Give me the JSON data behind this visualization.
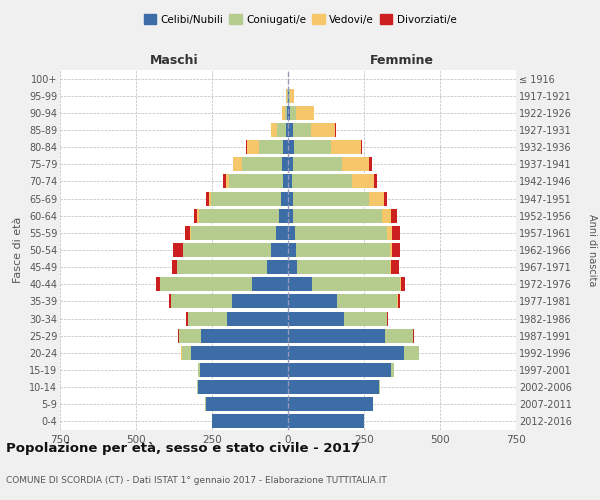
{
  "age_groups": [
    "0-4",
    "5-9",
    "10-14",
    "15-19",
    "20-24",
    "25-29",
    "30-34",
    "35-39",
    "40-44",
    "45-49",
    "50-54",
    "55-59",
    "60-64",
    "65-69",
    "70-74",
    "75-79",
    "80-84",
    "85-89",
    "90-94",
    "95-99",
    "100+"
  ],
  "birth_years": [
    "2012-2016",
    "2007-2011",
    "2002-2006",
    "1997-2001",
    "1992-1996",
    "1987-1991",
    "1982-1986",
    "1977-1981",
    "1972-1976",
    "1967-1971",
    "1962-1966",
    "1957-1961",
    "1952-1956",
    "1947-1951",
    "1942-1946",
    "1937-1941",
    "1932-1936",
    "1927-1931",
    "1922-1926",
    "1917-1921",
    "≤ 1916"
  ],
  "maschi": {
    "celibe": [
      250,
      270,
      295,
      290,
      320,
      285,
      200,
      185,
      120,
      70,
      55,
      40,
      28,
      22,
      18,
      20,
      15,
      5,
      3,
      1,
      1
    ],
    "coniugato": [
      0,
      2,
      3,
      5,
      30,
      75,
      130,
      200,
      300,
      295,
      290,
      280,
      265,
      230,
      175,
      130,
      80,
      30,
      8,
      2,
      0
    ],
    "vedovo": [
      0,
      0,
      0,
      0,
      1,
      0,
      0,
      0,
      1,
      1,
      2,
      3,
      5,
      8,
      10,
      30,
      40,
      20,
      8,
      2,
      0
    ],
    "divorziato": [
      0,
      0,
      0,
      0,
      1,
      2,
      5,
      8,
      12,
      15,
      30,
      15,
      12,
      10,
      10,
      2,
      2,
      0,
      0,
      0,
      0
    ]
  },
  "femmine": {
    "nubile": [
      250,
      280,
      300,
      340,
      380,
      320,
      185,
      160,
      80,
      30,
      25,
      22,
      18,
      15,
      12,
      18,
      20,
      15,
      5,
      2,
      1
    ],
    "coniugata": [
      0,
      1,
      3,
      8,
      50,
      90,
      140,
      200,
      290,
      305,
      310,
      305,
      290,
      250,
      200,
      160,
      120,
      60,
      20,
      3,
      0
    ],
    "vedova": [
      0,
      0,
      0,
      0,
      1,
      1,
      1,
      2,
      3,
      5,
      8,
      15,
      30,
      50,
      70,
      90,
      100,
      80,
      60,
      15,
      0
    ],
    "divorziata": [
      0,
      0,
      0,
      0,
      1,
      2,
      3,
      8,
      12,
      25,
      25,
      25,
      20,
      12,
      12,
      8,
      5,
      2,
      0,
      0,
      0
    ]
  },
  "colors": {
    "celibe": "#3c6da6",
    "coniugato": "#b5cc8e",
    "vedovo": "#f5c76a",
    "divorziato": "#cc2020"
  },
  "xlim": 750,
  "title": "Popolazione per età, sesso e stato civile - 2017",
  "subtitle": "COMUNE DI SCORDIA (CT) - Dati ISTAT 1° gennaio 2017 - Elaborazione TUTTITALIA.IT",
  "ylabel": "Fasce di età",
  "ylabel_right": "Anni di nascita",
  "xlabel_left": "Maschi",
  "xlabel_right": "Femmine",
  "legend_labels": [
    "Celibi/Nubili",
    "Coniugati/e",
    "Vedovi/e",
    "Divorziati/e"
  ],
  "bg_color": "#f0f0f0",
  "plot_bg_color": "#ffffff"
}
